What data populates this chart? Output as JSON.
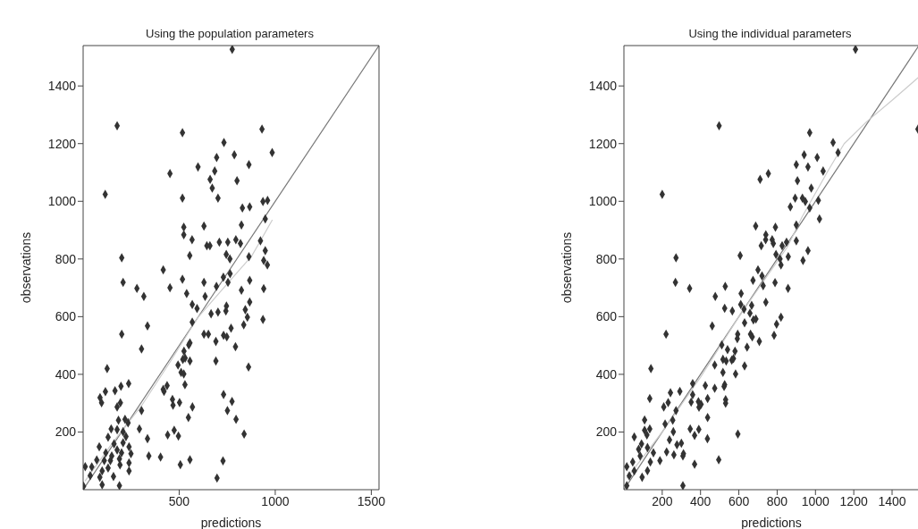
{
  "chart_data": [
    {
      "type": "scatter",
      "title": "Using the population parameters",
      "xlabel": "predictions",
      "ylabel": "observations",
      "xlim": [
        0,
        1540
      ],
      "ylim": [
        0,
        1540
      ],
      "xticks": [
        500,
        1000,
        1500
      ],
      "yticks": [
        200,
        400,
        600,
        800,
        1000,
        1200,
        1400
      ],
      "grid": false,
      "legend": false,
      "series": [
        {
          "type": "scatter",
          "marker": "diamond",
          "color": "#333333",
          "x": [
            776,
            177,
            517,
            931,
            733,
            984,
            787,
            695,
            863,
            598,
            685,
            452,
            661,
            801,
            672,
            115,
            517,
            702,
            936,
            960,
            829,
            867,
            948,
            524,
            629,
            824,
            524,
            567,
            644,
            660,
            709,
            753,
            795,
            819,
            923,
            948,
            555,
            745,
            764,
            863,
            940,
            201,
            959,
            417,
            208,
            517,
            629,
            754,
            867,
            280,
            452,
            316,
            539,
            635,
            694,
            730,
            765,
            824,
            940,
            568,
            593,
            666,
            702,
            743,
            746,
            844,
            867,
            855,
            936,
            568,
            335,
            201,
            629,
            652,
            731,
            748,
            770,
            836,
            691,
            793,
            556,
            550,
            304,
            525,
            519,
            531,
            556,
            494,
            510,
            524,
            530,
            691,
            861,
            125,
            417,
            437,
            421,
            465,
            468,
            502,
            569,
            548,
            304,
            731,
            775,
            751,
            796,
            838,
            116,
            88,
            96,
            166,
            197,
            237,
            194,
            177,
            184,
            218,
            234,
            146,
            177,
            208,
            130,
            223,
            293,
            335,
            440,
            474,
            496,
            84,
            161,
            208,
            239,
            118,
            177,
            149,
            200,
            249,
            71,
            110,
            142,
            189,
            239,
            342,
            403,
            556,
            506,
            728,
            11,
            45,
            99,
            130,
            158,
            239,
            192,
            37,
            87,
            99,
            189,
            2,
            697
          ],
          "values": [
            1527,
            1262,
            1238,
            1250,
            1204,
            1169,
            1161,
            1152,
            1127,
            1119,
            1105,
            1096,
            1076,
            1071,
            1046,
            1024,
            1011,
            1011,
            999,
            1003,
            977,
            981,
            939,
            910,
            914,
            918,
            884,
            867,
            846,
            846,
            858,
            858,
            867,
            854,
            863,
            829,
            812,
            816,
            800,
            808,
            795,
            804,
            779,
            762,
            719,
            730,
            719,
            719,
            726,
            698,
            700,
            670,
            680,
            670,
            705,
            737,
            749,
            692,
            697,
            642,
            628,
            610,
            616,
            620,
            637,
            624,
            651,
            598,
            590,
            581,
            568,
            539,
            539,
            539,
            535,
            530,
            560,
            572,
            514,
            496,
            509,
            502,
            488,
            480,
            452,
            456,
            446,
            432,
            407,
            401,
            364,
            446,
            425,
            420,
            348,
            361,
            341,
            313,
            293,
            302,
            287,
            250,
            274,
            330,
            306,
            274,
            244,
            193,
            340,
            319,
            301,
            343,
            359,
            368,
            301,
            287,
            241,
            244,
            232,
            211,
            208,
            201,
            182,
            184,
            211,
            177,
            190,
            206,
            186,
            149,
            159,
            163,
            149,
            128,
            138,
            117,
            128,
            125,
            103,
            101,
            101,
            107,
            93,
            117,
            113,
            104,
            87,
            100,
            80,
            79,
            65,
            75,
            46,
            65,
            86,
            49,
            43,
            17,
            14,
            12,
            40
          ]
        },
        {
          "type": "line",
          "color": "#777777",
          "x": [
            0,
            1540
          ],
          "values": [
            0,
            1540
          ]
        },
        {
          "type": "line",
          "color": "#cccccc",
          "x": [
            10,
            150,
            308,
            450,
            595,
            757,
            877,
            923,
            985
          ],
          "values": [
            30,
            160,
            295,
            440,
            595,
            719,
            810,
            863,
            936
          ]
        }
      ]
    },
    {
      "type": "scatter",
      "title": "Using the individual parameters",
      "xlabel": "predictions",
      "ylabel": "observations",
      "xlim": [
        0,
        1540
      ],
      "ylim": [
        0,
        1540
      ],
      "xticks": [
        200,
        400,
        600,
        800,
        1000,
        1200,
        1400
      ],
      "yticks": [
        200,
        400,
        600,
        800,
        1000,
        1200,
        1400
      ],
      "grid": false,
      "legend": false,
      "series": [
        {
          "type": "scatter",
          "marker": "diamond",
          "color": "#333333",
          "x": [
            1209,
            497,
            1535,
            970,
            1092,
            1118,
            941,
            1009,
            900,
            961,
            1040,
            754,
            711,
            906,
            978,
            200,
            894,
            932,
            947,
            1015,
            869,
            970,
            1021,
            688,
            791,
            900,
            741,
            740,
            774,
            780,
            717,
            826,
            849,
            900,
            961,
            607,
            794,
            815,
            858,
            935,
            272,
            820,
            700,
            269,
            343,
            477,
            529,
            612,
            674,
            721,
            727,
            741,
            789,
            857,
            526,
            566,
            610,
            627,
            658,
            667,
            676,
            689,
            630,
            461,
            594,
            592,
            643,
            661,
            670,
            707,
            784,
            797,
            820,
            220,
            511,
            541,
            517,
            534,
            563,
            580,
            572,
            474,
            630,
            517,
            583,
            526,
            523,
            141,
            359,
            359,
            292,
            243,
            425,
            474,
            437,
            389,
            392,
            403,
            351,
            231,
            208,
            135,
            272,
            437,
            531,
            531,
            108,
            135,
            108,
            54,
            215,
            255,
            258,
            238,
            277,
            300,
            346,
            369,
            391,
            436,
            308,
            261,
            223,
            311,
            595,
            92,
            123,
            154,
            138,
            77,
            85,
            46,
            188,
            369,
            495,
            15,
            54,
            95,
            123,
            28,
            15,
            308,
            120
          ],
          "values": [
            1527,
            1262,
            1250,
            1238,
            1204,
            1169,
            1161,
            1152,
            1127,
            1119,
            1105,
            1096,
            1076,
            1071,
            1046,
            1024,
            1011,
            1011,
            999,
            1003,
            981,
            977,
            939,
            914,
            910,
            918,
            884,
            867,
            867,
            854,
            846,
            846,
            858,
            863,
            829,
            812,
            816,
            800,
            808,
            795,
            804,
            779,
            762,
            719,
            698,
            670,
            705,
            680,
            726,
            741,
            707,
            650,
            718,
            698,
            629,
            620,
            642,
            626,
            612,
            639,
            589,
            592,
            579,
            568,
            539,
            524,
            494,
            539,
            530,
            514,
            535,
            574,
            598,
            539,
            502,
            486,
            452,
            446,
            449,
            480,
            455,
            432,
            429,
            407,
            401,
            364,
            358,
            420,
            368,
            329,
            341,
            336,
            361,
            352,
            316,
            305,
            286,
            296,
            304,
            302,
            287,
            316,
            274,
            250,
            300,
            312,
            242,
            211,
            206,
            183,
            228,
            241,
            201,
            173,
            156,
            161,
            211,
            188,
            209,
            177,
            117,
            121,
            131,
            125,
            193,
            159,
            146,
            128,
            96,
            140,
            117,
            96,
            101,
            88,
            104,
            80,
            65,
            43,
            66,
            48,
            14,
            14,
            190
          ]
        },
        {
          "type": "line",
          "color": "#777777",
          "x": [
            0,
            1540
          ],
          "values": [
            0,
            1540
          ]
        },
        {
          "type": "line",
          "color": "#cccccc",
          "x": [
            15,
            200,
            400,
            600,
            854,
            930,
            1064,
            1150,
            1269,
            1400,
            1538
          ],
          "values": [
            40,
            200,
            390,
            600,
            842,
            946,
            1104,
            1200,
            1277,
            1350,
            1430
          ]
        }
      ]
    }
  ]
}
